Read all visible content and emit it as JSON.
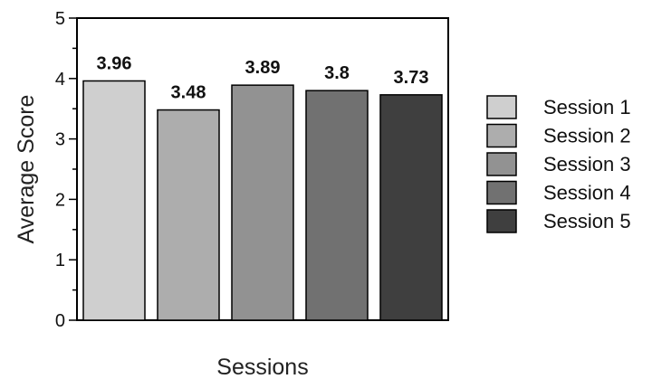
{
  "chart_data": {
    "type": "bar",
    "title": "",
    "xlabel": "Sessions",
    "ylabel": "Average Score",
    "ylim": [
      0,
      5
    ],
    "yticks": [
      "0",
      "1",
      "2",
      "3",
      "4",
      "5"
    ],
    "grid": false,
    "legend_position": "right",
    "categories": [
      "Session 1",
      "Session 2",
      "Session 3",
      "Session 4",
      "Session 5"
    ],
    "values": [
      3.96,
      3.48,
      3.89,
      3.8,
      3.73
    ],
    "value_labels": [
      "3.96",
      "3.48",
      "3.89",
      "3.8",
      "3.73"
    ],
    "colors": [
      "#cfcfcf",
      "#adadad",
      "#929292",
      "#717171",
      "#3f3f3f"
    ]
  }
}
